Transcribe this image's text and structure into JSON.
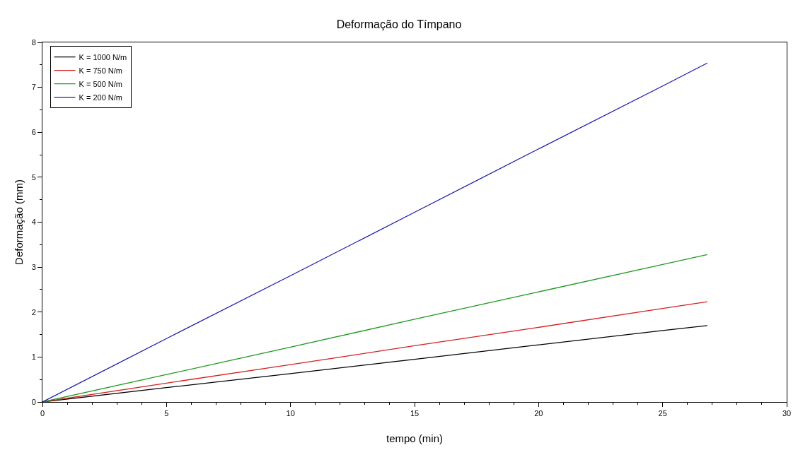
{
  "chart_data": {
    "type": "line",
    "title": "Deformação do Tímpano",
    "xlabel": "tempo (min)",
    "ylabel": "Deformação (mm)",
    "xlim": [
      0,
      30
    ],
    "xticks": [
      0,
      5,
      10,
      15,
      20,
      25,
      30
    ],
    "ylim": [
      0,
      8
    ],
    "yticks": [
      0,
      1,
      2,
      3,
      4,
      5,
      6,
      7,
      8
    ],
    "grid": false,
    "legend": "top left",
    "marker": "none",
    "line_style": "solid",
    "series": [
      {
        "name": "K = 1000 N/m",
        "color": "#000000",
        "x": [
          0,
          5,
          10,
          15,
          20,
          25,
          26.8
        ],
        "values": [
          0,
          0.32,
          0.63,
          0.95,
          1.27,
          1.59,
          1.7
        ]
      },
      {
        "name": "K = 750 N/m",
        "color": "#d62020",
        "x": [
          0,
          5,
          10,
          15,
          20,
          25,
          26.8
        ],
        "values": [
          0,
          0.42,
          0.83,
          1.25,
          1.66,
          2.08,
          2.23
        ]
      },
      {
        "name": "K = 500 N/m",
        "color": "#1e9a1e",
        "x": [
          0,
          5,
          10,
          15,
          20,
          25,
          26.8
        ],
        "values": [
          0,
          0.61,
          1.22,
          1.84,
          2.45,
          3.06,
          3.28
        ]
      },
      {
        "name": "K = 200 N/m",
        "color": "#1a1ab4",
        "x": [
          0,
          5,
          10,
          15,
          20,
          25,
          26.8
        ],
        "values": [
          0,
          1.41,
          2.81,
          4.22,
          5.63,
          7.03,
          7.54
        ]
      }
    ]
  }
}
